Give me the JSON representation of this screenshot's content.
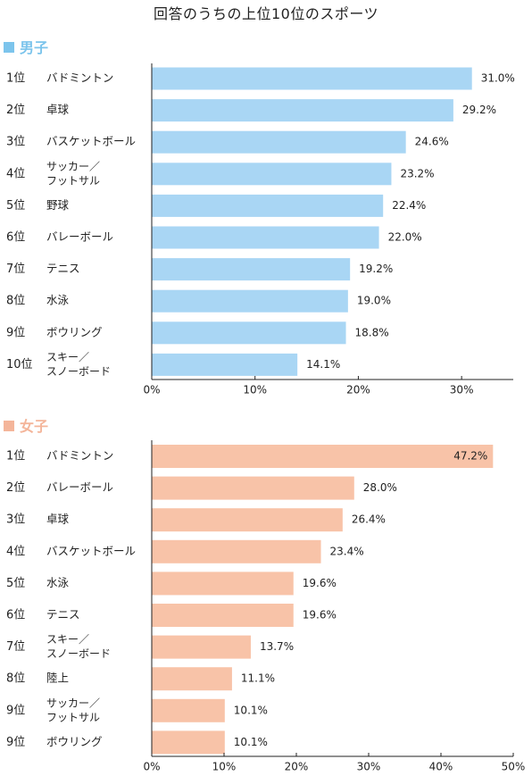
{
  "title": "回答のうちの上位10位のスポーツ",
  "colors": {
    "boys": "#a9d6f4",
    "girls": "#f8c3a8",
    "boys_head": "#7cc4ec",
    "girls_head": "#f4b59a",
    "axis": "#222222"
  },
  "chart_data": [
    {
      "type": "bar",
      "orientation": "horizontal",
      "title": "男子",
      "ranks": [
        "1位",
        "2位",
        "3位",
        "4位",
        "5位",
        "6位",
        "7位",
        "8位",
        "9位",
        "10位"
      ],
      "categories": [
        "バドミントン",
        "卓球",
        "バスケットボール",
        "サッカー／フットサル",
        "野球",
        "バレーボール",
        "テニス",
        "水泳",
        "ボウリング",
        "スキー／スノーボード"
      ],
      "values": [
        31.0,
        29.2,
        24.6,
        23.2,
        22.4,
        22.0,
        19.2,
        19.0,
        18.8,
        14.1
      ],
      "value_labels": [
        "31.0%",
        "29.2%",
        "24.6%",
        "23.2%",
        "22.4%",
        "22.0%",
        "19.2%",
        "19.0%",
        "18.8%",
        "14.1%"
      ],
      "xlim": [
        0,
        35
      ],
      "xticks": [
        0,
        10,
        20,
        30
      ],
      "xtick_labels": [
        "0%",
        "10%",
        "20%",
        "30%"
      ]
    },
    {
      "type": "bar",
      "orientation": "horizontal",
      "title": "女子",
      "ranks": [
        "1位",
        "2位",
        "3位",
        "4位",
        "5位",
        "6位",
        "7位",
        "8位",
        "9位",
        "9位"
      ],
      "categories": [
        "バドミントン",
        "バレーボール",
        "卓球",
        "バスケットボール",
        "水泳",
        "テニス",
        "スキー／スノーボード",
        "陸上",
        "サッカー／フットサル",
        "ボウリング"
      ],
      "values": [
        47.2,
        28.0,
        26.4,
        23.4,
        19.6,
        19.6,
        13.7,
        11.1,
        10.1,
        10.1
      ],
      "value_labels": [
        "47.2%",
        "28.0%",
        "26.4%",
        "23.4%",
        "19.6%",
        "19.6%",
        "13.7%",
        "11.1%",
        "10.1%",
        "10.1%"
      ],
      "xlim": [
        0,
        50
      ],
      "xticks": [
        0,
        10,
        20,
        30,
        40,
        50
      ],
      "xtick_labels": [
        "0%",
        "10%",
        "20%",
        "30%",
        "40%",
        "50%"
      ]
    }
  ]
}
